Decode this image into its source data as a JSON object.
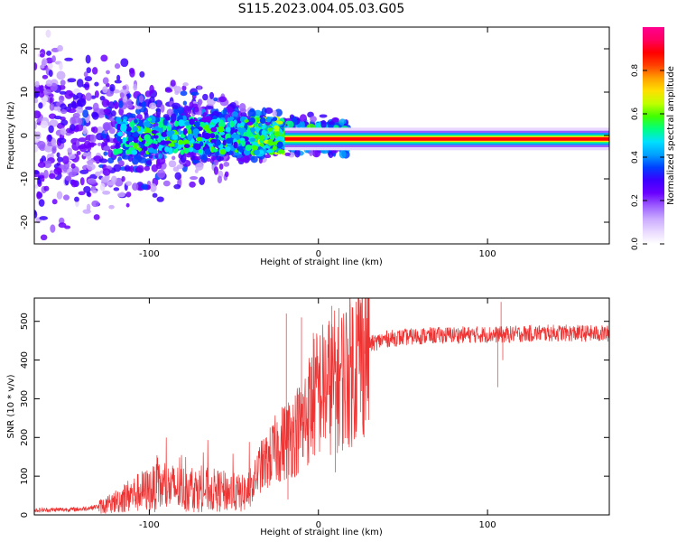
{
  "title": "S115.2023.004.05.03.G05",
  "chart_data": [
    {
      "type": "heatmap",
      "xlabel": "Height of straight line (km)",
      "ylabel": "Frequency (Hz)",
      "xlim": [
        -168,
        172
      ],
      "ylim": [
        -25,
        25
      ],
      "x_ticks": [
        -100,
        0,
        100
      ],
      "y_ticks": [
        -20,
        -10,
        0,
        10,
        20
      ],
      "colorbar": {
        "label": "Normalized spectral amplitude",
        "range": [
          0,
          1
        ],
        "ticks": [
          0.0,
          0.2,
          0.4,
          0.6,
          0.8
        ],
        "colormap": [
          "#ffffff",
          "#e8d8ff",
          "#c9a8ff",
          "#9b5cff",
          "#6a00ff",
          "#3b00ff",
          "#0040ff",
          "#00a0ff",
          "#00e0ff",
          "#00ff80",
          "#40ff00",
          "#c0ff00",
          "#ffe000",
          "#ffa000",
          "#ff4000",
          "#ff0000",
          "#ff0060",
          "#ff0090"
        ]
      },
      "description_points": {
        "noisy_region": {
          "x_range": [
            -168,
            -20
          ],
          "spread_hz_at_left": 25,
          "spread_hz_at_right": 5
        },
        "stable_line": {
          "x_range": [
            -20,
            172
          ],
          "frequency_hz": -0.8
        }
      }
    },
    {
      "type": "line",
      "xlabel": "Height of straight line (km)",
      "ylabel": "SNR (10 * v/v)",
      "xlim": [
        -168,
        172
      ],
      "ylim": [
        0,
        560
      ],
      "x_ticks": [
        -100,
        0,
        100
      ],
      "y_ticks": [
        0,
        100,
        200,
        300,
        400,
        500
      ],
      "color": "#ee3333",
      "profile": [
        [
          -168,
          12
        ],
        [
          -140,
          15
        ],
        [
          -125,
          25
        ],
        [
          -115,
          45
        ],
        [
          -105,
          60
        ],
        [
          -95,
          70
        ],
        [
          -85,
          70
        ],
        [
          -75,
          65
        ],
        [
          -65,
          65
        ],
        [
          -55,
          60
        ],
        [
          -45,
          55
        ],
        [
          -40,
          65
        ],
        [
          -35,
          120
        ],
        [
          -30,
          140
        ],
        [
          -25,
          170
        ],
        [
          -20,
          190
        ],
        [
          -15,
          210
        ],
        [
          -10,
          230
        ],
        [
          -5,
          280
        ],
        [
          0,
          320
        ],
        [
          5,
          330
        ],
        [
          10,
          345
        ],
        [
          15,
          360
        ],
        [
          20,
          385
        ],
        [
          25,
          420
        ],
        [
          30,
          440
        ],
        [
          40,
          455
        ],
        [
          60,
          462
        ],
        [
          80,
          465
        ],
        [
          100,
          466
        ],
        [
          108,
          465
        ],
        [
          120,
          468
        ],
        [
          140,
          470
        ],
        [
          172,
          468
        ]
      ],
      "spikes": [
        [
          -19,
          520
        ],
        [
          -18,
          40
        ],
        [
          -10,
          510
        ],
        [
          -9,
          150
        ],
        [
          -3,
          470
        ],
        [
          8,
          540
        ],
        [
          10,
          110
        ],
        [
          12,
          380
        ],
        [
          106,
          330
        ],
        [
          108,
          550
        ],
        [
          109,
          400
        ]
      ]
    }
  ]
}
